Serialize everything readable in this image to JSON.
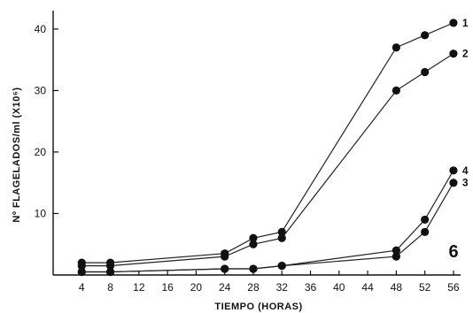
{
  "chart_data": {
    "type": "line",
    "title": "",
    "panel_label": "6",
    "xlabel": "TIEMPO (HORAS)",
    "ylabel": "Nº FLAGELADOS/ml (X10⁶)",
    "xlim": [
      0,
      57
    ],
    "ylim": [
      0,
      43
    ],
    "xticks": [
      4,
      8,
      12,
      16,
      20,
      24,
      28,
      32,
      36,
      40,
      44,
      48,
      52,
      56
    ],
    "yticks": [
      10,
      20,
      30,
      40
    ],
    "x": [
      4,
      8,
      24,
      28,
      32,
      48,
      52,
      56
    ],
    "series": [
      {
        "name": "1",
        "values": [
          2,
          2,
          3.5,
          6,
          7,
          37,
          39,
          41
        ]
      },
      {
        "name": "2",
        "values": [
          1.5,
          1.5,
          3,
          5,
          6,
          30,
          33,
          36
        ]
      },
      {
        "name": "3",
        "values": [
          0.5,
          0.5,
          1,
          1,
          1.5,
          3,
          7,
          15
        ]
      },
      {
        "name": "4",
        "values": [
          0.5,
          0.5,
          1,
          1,
          1.5,
          4,
          9,
          17
        ]
      }
    ],
    "grid": false,
    "legend": "none"
  }
}
